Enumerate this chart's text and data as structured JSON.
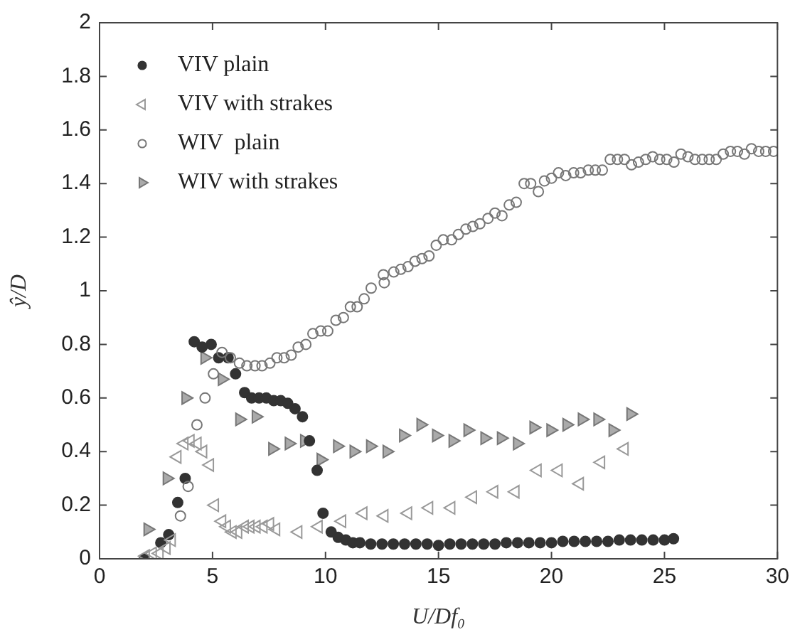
{
  "chart_data": {
    "type": "scatter",
    "xlabel": "U/Df₀",
    "ylabel": "ŷ/D",
    "xlim": [
      0,
      30
    ],
    "ylim": [
      0,
      2
    ],
    "xticks": [
      0,
      5,
      10,
      15,
      20,
      25,
      30
    ],
    "yticks": [
      0,
      0.2,
      0.4,
      0.6,
      0.8,
      1,
      1.2,
      1.4,
      1.6,
      1.8,
      2
    ],
    "grid": false,
    "legend": "top left",
    "series": [
      {
        "name": "VIV plain",
        "color": "#333333",
        "marker": "circle",
        "x": [
          1.98,
          2.71,
          3.06,
          3.46,
          3.79,
          4.19,
          4.54,
          4.94,
          5.27,
          5.69,
          6.02,
          6.42,
          6.73,
          7.06,
          7.38,
          7.71,
          8.02,
          8.33,
          8.65,
          8.98,
          9.29,
          9.63,
          9.89,
          10.25,
          10.56,
          10.9,
          11.21,
          11.52,
          12,
          12.5,
          13,
          13.5,
          14,
          14.5,
          15,
          15.5,
          16,
          16.5,
          17,
          17.5,
          18,
          18.5,
          19,
          19.5,
          20,
          20.5,
          21,
          21.5,
          22,
          22.5,
          23,
          23.5,
          24,
          24.5,
          25,
          25.4
        ],
        "values": [
          0,
          0.06,
          0.09,
          0.21,
          0.3,
          0.81,
          0.79,
          0.8,
          0.75,
          0.75,
          0.69,
          0.62,
          0.6,
          0.6,
          0.6,
          0.59,
          0.59,
          0.58,
          0.56,
          0.53,
          0.44,
          0.33,
          0.17,
          0.1,
          0.08,
          0.07,
          0.06,
          0.06,
          0.055,
          0.055,
          0.055,
          0.055,
          0.055,
          0.055,
          0.05,
          0.055,
          0.055,
          0.055,
          0.055,
          0.055,
          0.06,
          0.06,
          0.06,
          0.06,
          0.06,
          0.065,
          0.065,
          0.065,
          0.065,
          0.065,
          0.07,
          0.07,
          0.07,
          0.07,
          0.07,
          0.075
        ]
      },
      {
        "name": "VIV with strakes",
        "color": "#999999",
        "marker": "triangle-left-open",
        "x": [
          2.04,
          2.35,
          2.65,
          2.96,
          3.19,
          3.44,
          3.75,
          4.02,
          4.33,
          4.58,
          4.88,
          5.1,
          5.42,
          5.63,
          5.88,
          6.13,
          6.42,
          6.67,
          6.94,
          7.25,
          7.54,
          7.81,
          8.79,
          9.69,
          10.73,
          11.67,
          12.6,
          13.65,
          14.58,
          15.56,
          16.52,
          17.46,
          18.4,
          19.38,
          20.31,
          21.25,
          22.19,
          23.23
        ],
        "values": [
          0.01,
          0.02,
          0.02,
          0.04,
          0.07,
          0.38,
          0.43,
          0.44,
          0.43,
          0.4,
          0.35,
          0.2,
          0.14,
          0.12,
          0.1,
          0.1,
          0.12,
          0.12,
          0.12,
          0.12,
          0.13,
          0.11,
          0.1,
          0.12,
          0.14,
          0.17,
          0.16,
          0.17,
          0.19,
          0.19,
          0.23,
          0.25,
          0.25,
          0.33,
          0.33,
          0.28,
          0.36,
          0.41
        ]
      },
      {
        "name": "WIV  plain",
        "color": "#777777",
        "marker": "circle-open",
        "x": [
          3.58,
          3.92,
          4.31,
          4.67,
          5.04,
          5.42,
          5.79,
          6.19,
          6.52,
          6.88,
          7.19,
          7.54,
          7.85,
          8.17,
          8.48,
          8.79,
          9.13,
          9.44,
          9.79,
          10.1,
          10.46,
          10.79,
          11.1,
          11.4,
          11.71,
          12.02,
          12.56,
          12.6,
          13.02,
          13.33,
          13.65,
          13.96,
          14.27,
          14.58,
          14.9,
          15.21,
          15.58,
          15.88,
          16.21,
          16.52,
          16.83,
          17.19,
          17.5,
          17.81,
          18.13,
          18.44,
          18.79,
          19.08,
          19.42,
          19.69,
          20,
          20.31,
          20.63,
          20.98,
          21.29,
          21.63,
          21.94,
          22.25,
          22.6,
          22.92,
          23.23,
          23.54,
          23.85,
          24.17,
          24.48,
          24.79,
          25.1,
          25.42,
          25.73,
          26.04,
          26.35,
          26.67,
          26.98,
          27.29,
          27.6,
          27.92,
          28.23,
          28.54,
          28.85,
          29.17,
          29.48,
          29.83
        ],
        "values": [
          0.16,
          0.27,
          0.5,
          0.6,
          0.69,
          0.77,
          0.75,
          0.73,
          0.72,
          0.72,
          0.72,
          0.73,
          0.75,
          0.75,
          0.76,
          0.79,
          0.8,
          0.84,
          0.85,
          0.85,
          0.89,
          0.9,
          0.94,
          0.94,
          0.97,
          1.01,
          1.06,
          1.03,
          1.07,
          1.08,
          1.09,
          1.11,
          1.12,
          1.13,
          1.17,
          1.19,
          1.19,
          1.21,
          1.23,
          1.24,
          1.25,
          1.27,
          1.29,
          1.28,
          1.32,
          1.33,
          1.4,
          1.4,
          1.37,
          1.41,
          1.42,
          1.44,
          1.43,
          1.44,
          1.44,
          1.45,
          1.45,
          1.45,
          1.49,
          1.49,
          1.49,
          1.47,
          1.48,
          1.49,
          1.5,
          1.49,
          1.49,
          1.48,
          1.51,
          1.5,
          1.49,
          1.49,
          1.49,
          1.49,
          1.51,
          1.52,
          1.52,
          1.51,
          1.53,
          1.52,
          1.52,
          1.52
        ]
      },
      {
        "name": "WIV with strakes",
        "color": "#aaaaaa",
        "marker": "triangle-right",
        "x": [
          2.13,
          2.98,
          3.81,
          4.65,
          5.42,
          6.19,
          6.92,
          7.65,
          8.38,
          9.06,
          9.79,
          10.52,
          11.25,
          11.98,
          12.71,
          13.44,
          14.21,
          14.9,
          15.63,
          16.29,
          17.04,
          17.77,
          18.48,
          19.21,
          19.96,
          20.67,
          21.35,
          22.04,
          22.71,
          23.5
        ],
        "values": [
          0.11,
          0.3,
          0.6,
          0.75,
          0.67,
          0.52,
          0.53,
          0.41,
          0.43,
          0.44,
          0.37,
          0.42,
          0.4,
          0.42,
          0.4,
          0.46,
          0.5,
          0.46,
          0.44,
          0.48,
          0.45,
          0.45,
          0.43,
          0.49,
          0.48,
          0.5,
          0.52,
          0.52,
          0.48,
          0.54
        ]
      }
    ]
  }
}
